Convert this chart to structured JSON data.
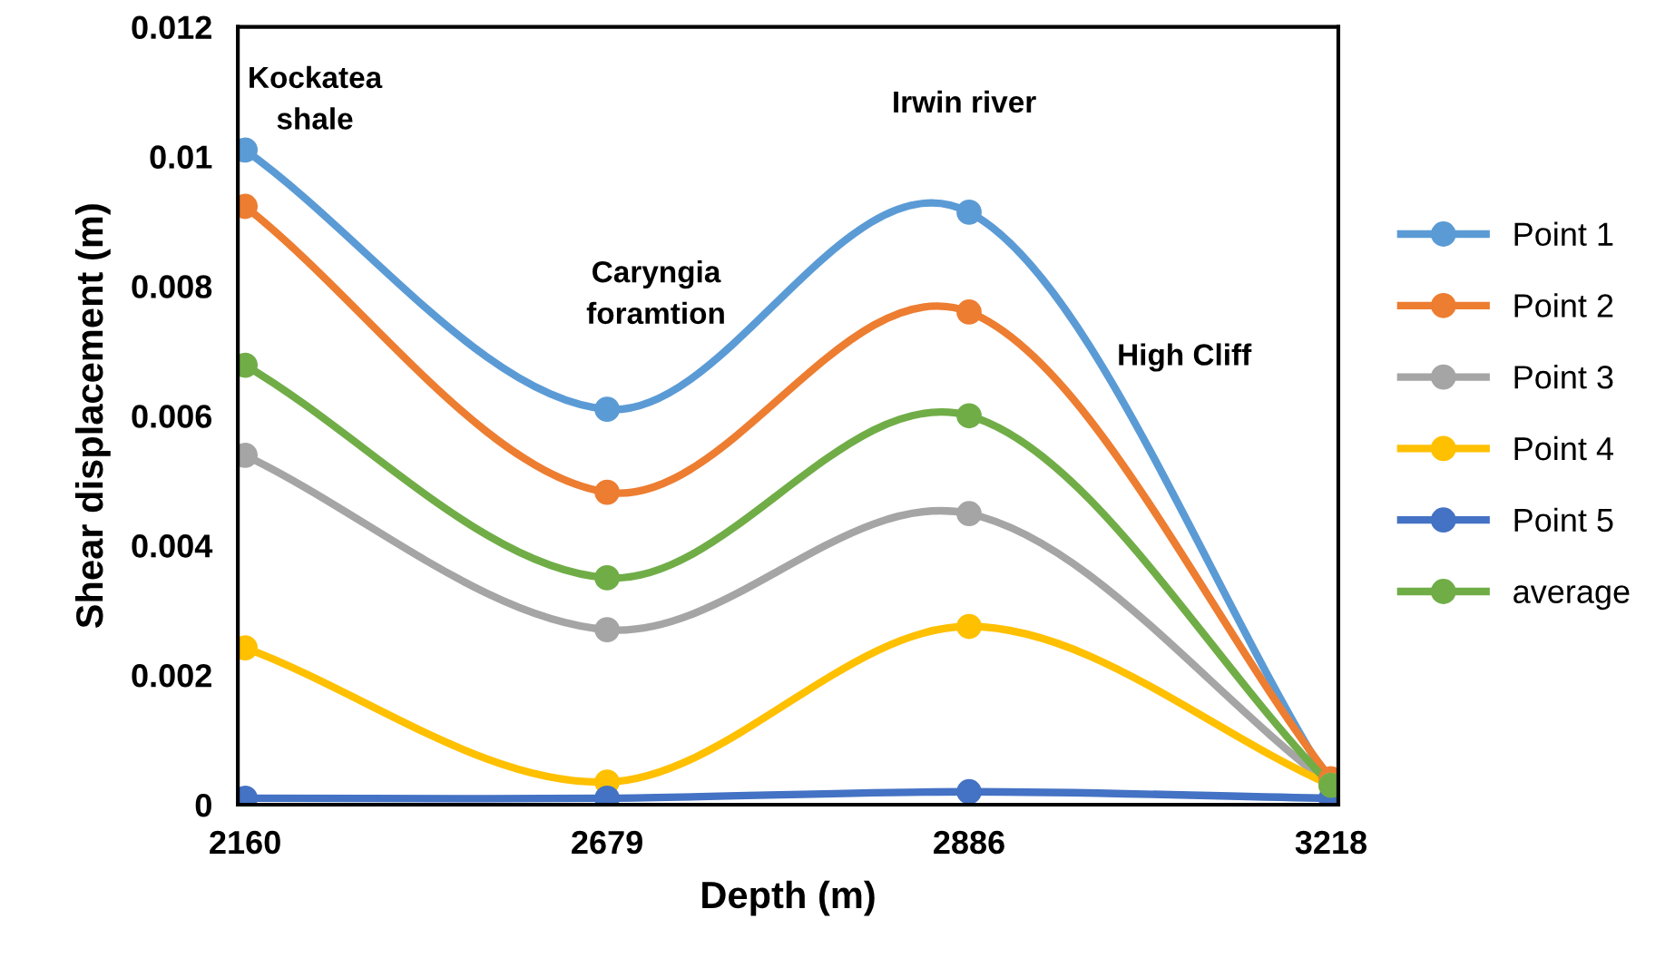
{
  "chart_data": {
    "type": "line",
    "xlabel": "Depth (m)",
    "ylabel": "Shear displacement (m)",
    "categories": [
      "2160",
      "2679",
      "2886",
      "3218"
    ],
    "series": [
      {
        "name": "Point 1",
        "color": "#5b9bd5",
        "values": [
          0.0101,
          0.0061,
          0.00914,
          0.0003
        ]
      },
      {
        "name": "Point 2",
        "color": "#ed7d31",
        "values": [
          0.00923,
          0.00482,
          0.0076,
          0.0004
        ]
      },
      {
        "name": "Point 3",
        "color": "#a5a5a5",
        "values": [
          0.00539,
          0.0027,
          0.00449,
          0.0003
        ]
      },
      {
        "name": "Point 4",
        "color": "#ffc000",
        "values": [
          0.00242,
          0.00035,
          0.00275,
          0.0003
        ]
      },
      {
        "name": "Point 5",
        "color": "#4472c4",
        "values": [
          0.0001,
          0.0001,
          0.0002,
          0.0001
        ]
      },
      {
        "name": "average",
        "color": "#70ad47",
        "values": [
          0.00678,
          0.0035,
          0.006,
          0.0003
        ]
      }
    ],
    "ylim": [
      0,
      0.012
    ],
    "yticks": [
      0,
      0.002,
      0.004,
      0.006,
      0.008,
      0.01,
      0.012
    ],
    "annotations": [
      "Kockatea\nshale",
      "Caryngia\nforamtion",
      "Irwin river",
      "High Cliff"
    ],
    "grid": false,
    "legend": "right",
    "marker": "circle",
    "line_style": "solid"
  }
}
